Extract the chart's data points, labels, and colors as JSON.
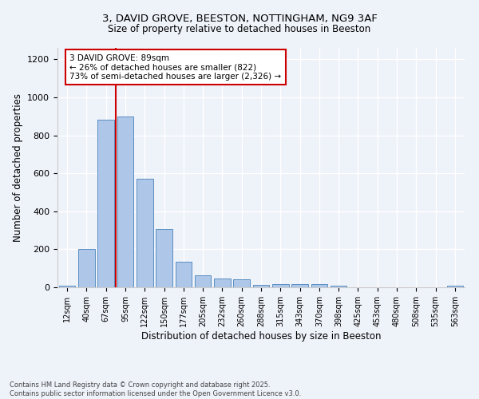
{
  "title1": "3, DAVID GROVE, BEESTON, NOTTINGHAM, NG9 3AF",
  "title2": "Size of property relative to detached houses in Beeston",
  "xlabel": "Distribution of detached houses by size in Beeston",
  "ylabel": "Number of detached properties",
  "bar_labels": [
    "12sqm",
    "40sqm",
    "67sqm",
    "95sqm",
    "122sqm",
    "150sqm",
    "177sqm",
    "205sqm",
    "232sqm",
    "260sqm",
    "288sqm",
    "315sqm",
    "343sqm",
    "370sqm",
    "398sqm",
    "425sqm",
    "453sqm",
    "480sqm",
    "508sqm",
    "535sqm",
    "563sqm"
  ],
  "bar_values": [
    10,
    200,
    880,
    900,
    570,
    305,
    135,
    63,
    47,
    42,
    13,
    17,
    16,
    16,
    9,
    2,
    2,
    2,
    1,
    2,
    10
  ],
  "bar_color": "#aec6e8",
  "bar_edge_color": "#5a8fc2",
  "bg_color": "#eef2f9",
  "grid_color": "#ffffff",
  "vline_color": "#cc0000",
  "annotation_text": "3 DAVID GROVE: 89sqm\n← 26% of detached houses are smaller (822)\n73% of semi-detached houses are larger (2,326) →",
  "annotation_box_color": "#cc0000",
  "footer": "Contains HM Land Registry data © Crown copyright and database right 2025.\nContains public sector information licensed under the Open Government Licence v3.0.",
  "ylim": [
    0,
    1260
  ],
  "yticks": [
    0,
    200,
    400,
    600,
    800,
    1000,
    1200
  ]
}
